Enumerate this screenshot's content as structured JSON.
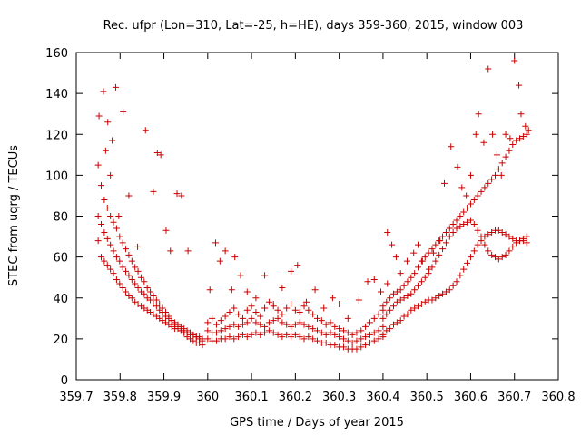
{
  "chart_data": {
    "type": "scatter",
    "title": "Rec. ufpr (Lon=310, Lat=-25, h=HE), days 359-360, 2015, window 003",
    "xlabel": "GPS time / Days of year 2015",
    "ylabel": "STEC from uqrg / TECUs",
    "xlim": [
      359.7,
      360.8
    ],
    "ylim": [
      0,
      160
    ],
    "xticks": [
      "359.7",
      "359.8",
      "359.9",
      "360",
      "360.1",
      "360.2",
      "360.3",
      "360.4",
      "360.5",
      "360.6",
      "360.7",
      "360.8"
    ],
    "yticks": [
      "0",
      "20",
      "40",
      "60",
      "80",
      "100",
      "120",
      "140",
      "160"
    ],
    "grid": false,
    "marker": "+",
    "color": "#cc0000",
    "series": [
      {
        "x": [
          359.75,
          359.757,
          359.764,
          359.771,
          359.778,
          359.785,
          359.792,
          359.799,
          359.806,
          359.813,
          359.82,
          359.827,
          359.834,
          359.841,
          359.848,
          359.855,
          359.862,
          359.869,
          359.876,
          359.883,
          359.89,
          359.897,
          359.904,
          359.911,
          359.918,
          359.925,
          359.932,
          359.939,
          359.946,
          359.953,
          359.96,
          359.967,
          359.974,
          359.981,
          359.988
        ],
        "y": [
          68,
          60,
          58,
          56,
          54,
          52,
          49,
          47,
          45,
          43,
          41,
          40,
          38,
          37,
          36,
          35,
          34,
          33,
          32,
          31,
          30,
          29,
          28,
          27,
          26,
          25,
          25,
          24,
          23,
          23,
          22,
          22,
          21,
          21,
          20
        ]
      },
      {
        "x": [
          359.75,
          359.757,
          359.764,
          359.771,
          359.778,
          359.785,
          359.792,
          359.799,
          359.806,
          359.813,
          359.82,
          359.827,
          359.834,
          359.841,
          359.848,
          359.855,
          359.862,
          359.869,
          359.876,
          359.883,
          359.89,
          359.897,
          359.904,
          359.911,
          359.918,
          359.925,
          359.932,
          359.939,
          359.946,
          359.953,
          359.96,
          359.967,
          359.974,
          359.981,
          359.988
        ],
        "y": [
          80,
          76,
          72,
          69,
          66,
          63,
          60,
          58,
          55,
          53,
          51,
          49,
          47,
          45,
          43,
          42,
          40,
          39,
          37,
          36,
          34,
          33,
          31,
          30,
          29,
          28,
          27,
          26,
          25,
          24,
          23,
          22,
          21,
          20,
          19
        ]
      },
      {
        "x": [
          359.75,
          359.757,
          359.764,
          359.771,
          359.778,
          359.785,
          359.792,
          359.799,
          359.806,
          359.813,
          359.82,
          359.827,
          359.834,
          359.841,
          359.848,
          359.855,
          359.862,
          359.869,
          359.876,
          359.883,
          359.89,
          359.897,
          359.904,
          359.911,
          359.918,
          359.925,
          359.932,
          359.939,
          359.946,
          359.953,
          359.96,
          359.967,
          359.974,
          359.981,
          359.988
        ],
        "y": [
          105,
          95,
          88,
          84,
          80,
          77,
          74,
          70,
          67,
          64,
          61,
          58,
          55,
          53,
          50,
          48,
          45,
          43,
          41,
          39,
          37,
          35,
          33,
          31,
          29,
          27,
          26,
          24,
          23,
          21,
          20,
          19,
          18,
          18,
          17
        ]
      },
      {
        "x": [
          359.752,
          359.762,
          359.767,
          359.772,
          359.778,
          359.782,
          359.79,
          359.797,
          359.807,
          359.82,
          359.84,
          359.858,
          359.876,
          359.885,
          359.893,
          359.905,
          359.915,
          359.93,
          359.94,
          359.955
        ],
        "y": [
          129,
          141,
          112,
          126,
          100,
          117,
          143,
          80,
          131,
          90,
          65,
          122,
          92,
          111,
          110,
          73,
          63,
          91,
          90,
          63
        ]
      },
      {
        "x": [
          360.0,
          360.01,
          360.02,
          360.03,
          360.04,
          360.05,
          360.06,
          360.07,
          360.08,
          360.09,
          360.1,
          360.11,
          360.12,
          360.13,
          360.14,
          360.15,
          360.16,
          360.17,
          360.18,
          360.19,
          360.2,
          360.21,
          360.22,
          360.23,
          360.24,
          360.25,
          360.26,
          360.27,
          360.28,
          360.29,
          360.3,
          360.31,
          360.32,
          360.33,
          360.34,
          360.35,
          360.36,
          360.37,
          360.38,
          360.39,
          360.4
        ],
        "y": [
          20,
          19,
          19,
          20,
          20,
          21,
          20,
          21,
          22,
          21,
          22,
          23,
          22,
          23,
          24,
          23,
          22,
          21,
          22,
          21,
          22,
          21,
          20,
          21,
          20,
          19,
          18,
          18,
          17,
          17,
          16,
          16,
          15,
          15,
          15,
          16,
          17,
          18,
          19,
          20,
          21
        ]
      },
      {
        "x": [
          360.0,
          360.01,
          360.02,
          360.03,
          360.04,
          360.05,
          360.06,
          360.07,
          360.08,
          360.09,
          360.1,
          360.11,
          360.12,
          360.13,
          360.14,
          360.15,
          360.16,
          360.17,
          360.18,
          360.19,
          360.2,
          360.21,
          360.22,
          360.23,
          360.24,
          360.25,
          360.26,
          360.27,
          360.28,
          360.29,
          360.3,
          360.31,
          360.32,
          360.33,
          360.34,
          360.35,
          360.36,
          360.37,
          360.38,
          360.39,
          360.4
        ],
        "y": [
          24,
          23,
          23,
          24,
          25,
          26,
          27,
          26,
          27,
          28,
          30,
          28,
          27,
          26,
          28,
          29,
          30,
          28,
          27,
          26,
          27,
          28,
          27,
          26,
          25,
          24,
          23,
          22,
          23,
          22,
          21,
          20,
          19,
          18,
          19,
          20,
          21,
          22,
          23,
          24,
          26
        ]
      },
      {
        "x": [
          360.0,
          360.01,
          360.02,
          360.03,
          360.04,
          360.05,
          360.06,
          360.07,
          360.08,
          360.09,
          360.1,
          360.11,
          360.12,
          360.13,
          360.14,
          360.15,
          360.16,
          360.17,
          360.18,
          360.19,
          360.2,
          360.21,
          360.22,
          360.23,
          360.24,
          360.25,
          360.26,
          360.27,
          360.28,
          360.29,
          360.3,
          360.31,
          360.32,
          360.33,
          360.34,
          360.35,
          360.36,
          360.37,
          360.38,
          360.39,
          360.4
        ],
        "y": [
          28,
          30,
          27,
          29,
          31,
          33,
          35,
          32,
          30,
          34,
          36,
          33,
          31,
          35,
          38,
          36,
          34,
          32,
          35,
          37,
          34,
          33,
          36,
          34,
          32,
          30,
          29,
          27,
          28,
          26,
          25,
          24,
          23,
          22,
          23,
          24,
          26,
          28,
          30,
          32,
          34
        ]
      },
      {
        "x": [
          360.005,
          360.018,
          360.028,
          360.04,
          360.055,
          360.062,
          360.075,
          360.09,
          360.11,
          360.13,
          360.15,
          360.17,
          360.19,
          360.205,
          360.225,
          360.245,
          360.265,
          360.285,
          360.3,
          360.32,
          360.345,
          360.365,
          360.38,
          360.395,
          360.41
        ],
        "y": [
          44,
          67,
          58,
          63,
          44,
          60,
          51,
          43,
          40,
          51,
          37,
          45,
          53,
          56,
          38,
          44,
          35,
          40,
          37,
          30,
          39,
          48,
          49,
          43,
          47
        ]
      },
      {
        "x": [
          360.4,
          360.408,
          360.416,
          360.424,
          360.432,
          360.44,
          360.448,
          360.456,
          360.464,
          360.472,
          360.48,
          360.488,
          360.496,
          360.504,
          360.512,
          360.52,
          360.528,
          360.536,
          360.544,
          360.552,
          360.56,
          360.568,
          360.576,
          360.584,
          360.592,
          360.6,
          360.608,
          360.616,
          360.624,
          360.632,
          360.64,
          360.648,
          360.656,
          360.664,
          360.672,
          360.68,
          360.688,
          360.696,
          360.704,
          360.712,
          360.72,
          360.728
        ],
        "y": [
          22,
          24,
          25,
          27,
          28,
          29,
          31,
          32,
          34,
          35,
          36,
          37,
          38,
          39,
          39,
          40,
          41,
          42,
          43,
          44,
          46,
          48,
          51,
          54,
          57,
          60,
          63,
          66,
          68,
          70,
          71,
          72,
          73,
          73,
          72,
          71,
          70,
          69,
          68,
          68,
          68,
          67
        ]
      },
      {
        "x": [
          360.4,
          360.408,
          360.416,
          360.424,
          360.432,
          360.44,
          360.448,
          360.456,
          360.464,
          360.472,
          360.48,
          360.488,
          360.496,
          360.504,
          360.512,
          360.52,
          360.528,
          360.536,
          360.544,
          360.552,
          360.56,
          360.568,
          360.576,
          360.584,
          360.592,
          360.6,
          360.608,
          360.616,
          360.624,
          360.632,
          360.64,
          360.648,
          360.656,
          360.664,
          360.672,
          360.68,
          360.688,
          360.696,
          360.704,
          360.712,
          360.72,
          360.728
        ],
        "y": [
          30,
          32,
          34,
          36,
          38,
          39,
          40,
          41,
          42,
          44,
          46,
          48,
          50,
          52,
          55,
          58,
          61,
          64,
          67,
          70,
          72,
          74,
          75,
          76,
          77,
          78,
          76,
          73,
          70,
          66,
          63,
          61,
          60,
          59,
          60,
          61,
          63,
          65,
          67,
          68,
          69,
          70
        ]
      },
      {
        "x": [
          360.4,
          360.408,
          360.416,
          360.424,
          360.432,
          360.44,
          360.448,
          360.456,
          360.464,
          360.472,
          360.48,
          360.488,
          360.496,
          360.504,
          360.512,
          360.52,
          360.528,
          360.536,
          360.544,
          360.552,
          360.56,
          360.568,
          360.576,
          360.584,
          360.592,
          360.6,
          360.608,
          360.616,
          360.624,
          360.632,
          360.64,
          360.648,
          360.656,
          360.664,
          360.672,
          360.68,
          360.688,
          360.696,
          360.704,
          360.712,
          360.72,
          360.728
        ],
        "y": [
          36,
          38,
          40,
          42,
          43,
          44,
          46,
          48,
          50,
          52,
          55,
          58,
          60,
          62,
          64,
          66,
          68,
          70,
          72,
          74,
          76,
          78,
          80,
          82,
          84,
          86,
          88,
          90,
          92,
          94,
          96,
          98,
          100,
          103,
          106,
          109,
          112,
          115,
          117,
          118,
          119,
          120
        ]
      },
      {
        "x": [
          360.41,
          360.42,
          360.43,
          360.44,
          360.455,
          360.47,
          360.48,
          360.49,
          360.505,
          360.515,
          360.53,
          360.54,
          360.555,
          360.57,
          360.58,
          360.59,
          360.6,
          360.612,
          360.618,
          360.63,
          360.64,
          360.65,
          360.66,
          360.67,
          360.68,
          360.69,
          360.7,
          360.71,
          360.715,
          360.725,
          360.732
        ],
        "y": [
          72,
          66,
          60,
          52,
          58,
          62,
          66,
          58,
          54,
          62,
          68,
          96,
          114,
          104,
          94,
          90,
          100,
          120,
          130,
          116,
          152,
          120,
          110,
          100,
          120,
          118,
          156,
          144,
          130,
          124,
          122
        ]
      }
    ]
  }
}
